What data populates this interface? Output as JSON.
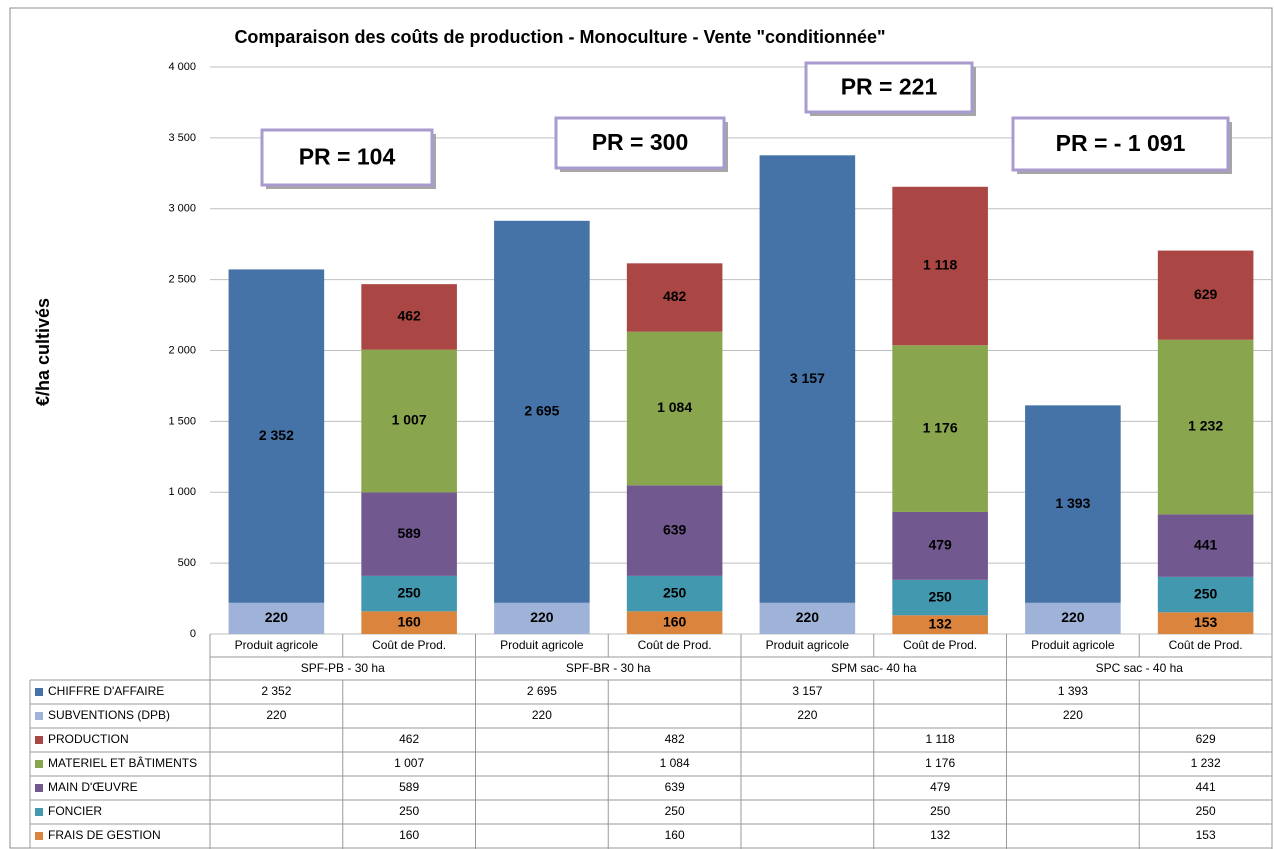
{
  "chart_data": {
    "type": "stacked_bar",
    "title": "Comparaison des coûts de production - Monoculture - Vente \"conditionnée\"",
    "y_label": "€/ha cultivés",
    "categories": [
      "Produit agricole",
      "Coût de Prod.",
      "Produit agricole",
      "Coût de Prod.",
      "Produit agricole",
      "Coût de Prod.",
      "Produit agricole",
      "Coût de Prod."
    ],
    "groups": [
      "SPF-PB - 30 ha",
      "SPF-BR - 30 ha",
      "SPM sac- 40 ha",
      "SPC sac - 40 ha"
    ],
    "series": [
      {
        "name": "CHIFFRE D'AFFAIRE",
        "color": "#4572a7",
        "values": [
          2352,
          null,
          2695,
          null,
          3157,
          null,
          1393,
          null
        ],
        "value_labels": [
          "2 352",
          null,
          "2 695",
          null,
          "3 157",
          null,
          "1 393",
          null
        ]
      },
      {
        "name": "SUBVENTIONS (DPB)",
        "color": "#9fb3d9",
        "values": [
          220,
          null,
          220,
          null,
          220,
          null,
          220,
          null
        ],
        "value_labels": [
          "220",
          null,
          "220",
          null,
          "220",
          null,
          "220",
          null
        ]
      },
      {
        "name": "PRODUCTION",
        "color": "#aa4643",
        "values": [
          null,
          462,
          null,
          482,
          null,
          1118,
          null,
          629
        ],
        "value_labels": [
          null,
          "462",
          null,
          "482",
          null,
          "1 118",
          null,
          "629"
        ]
      },
      {
        "name": "MATERIEL ET BÂTIMENTS",
        "color": "#89a54e",
        "values": [
          null,
          1007,
          null,
          1084,
          null,
          1176,
          null,
          1232
        ],
        "value_labels": [
          null,
          "1 007",
          null,
          "1 084",
          null,
          "1 176",
          null,
          "1 232"
        ]
      },
      {
        "name": "MAIN D'ŒUVRE",
        "color": "#71588f",
        "values": [
          null,
          589,
          null,
          639,
          null,
          479,
          null,
          441
        ],
        "value_labels": [
          null,
          "589",
          null,
          "639",
          null,
          "479",
          null,
          "441"
        ]
      },
      {
        "name": "FONCIER",
        "color": "#4198af",
        "values": [
          null,
          250,
          null,
          250,
          null,
          250,
          null,
          250
        ],
        "value_labels": [
          null,
          "250",
          null,
          "250",
          null,
          "250",
          null,
          "250"
        ]
      },
      {
        "name": "FRAIS DE GESTION",
        "color": "#db843d",
        "values": [
          null,
          160,
          null,
          160,
          null,
          132,
          null,
          153
        ],
        "value_labels": [
          null,
          "160",
          null,
          "160",
          null,
          "132",
          null,
          "153"
        ]
      }
    ],
    "ylim": [
      0,
      4000
    ],
    "yticks": [
      0,
      500,
      {
        "value": 1000,
        "label": "1 000"
      },
      {
        "value": 1500,
        "label": "1 500"
      },
      {
        "value": 2000,
        "label": "2 000"
      },
      {
        "value": 2500,
        "label": "2 500"
      },
      {
        "value": 3000,
        "label": "3 000"
      },
      {
        "value": 3500,
        "label": "3 500"
      },
      {
        "value": 4000,
        "label": "4 000"
      }
    ],
    "grid": true,
    "annotations": [
      "PR = 104",
      "PR = 300",
      "PR = 221",
      "PR = - 1 091"
    ]
  }
}
